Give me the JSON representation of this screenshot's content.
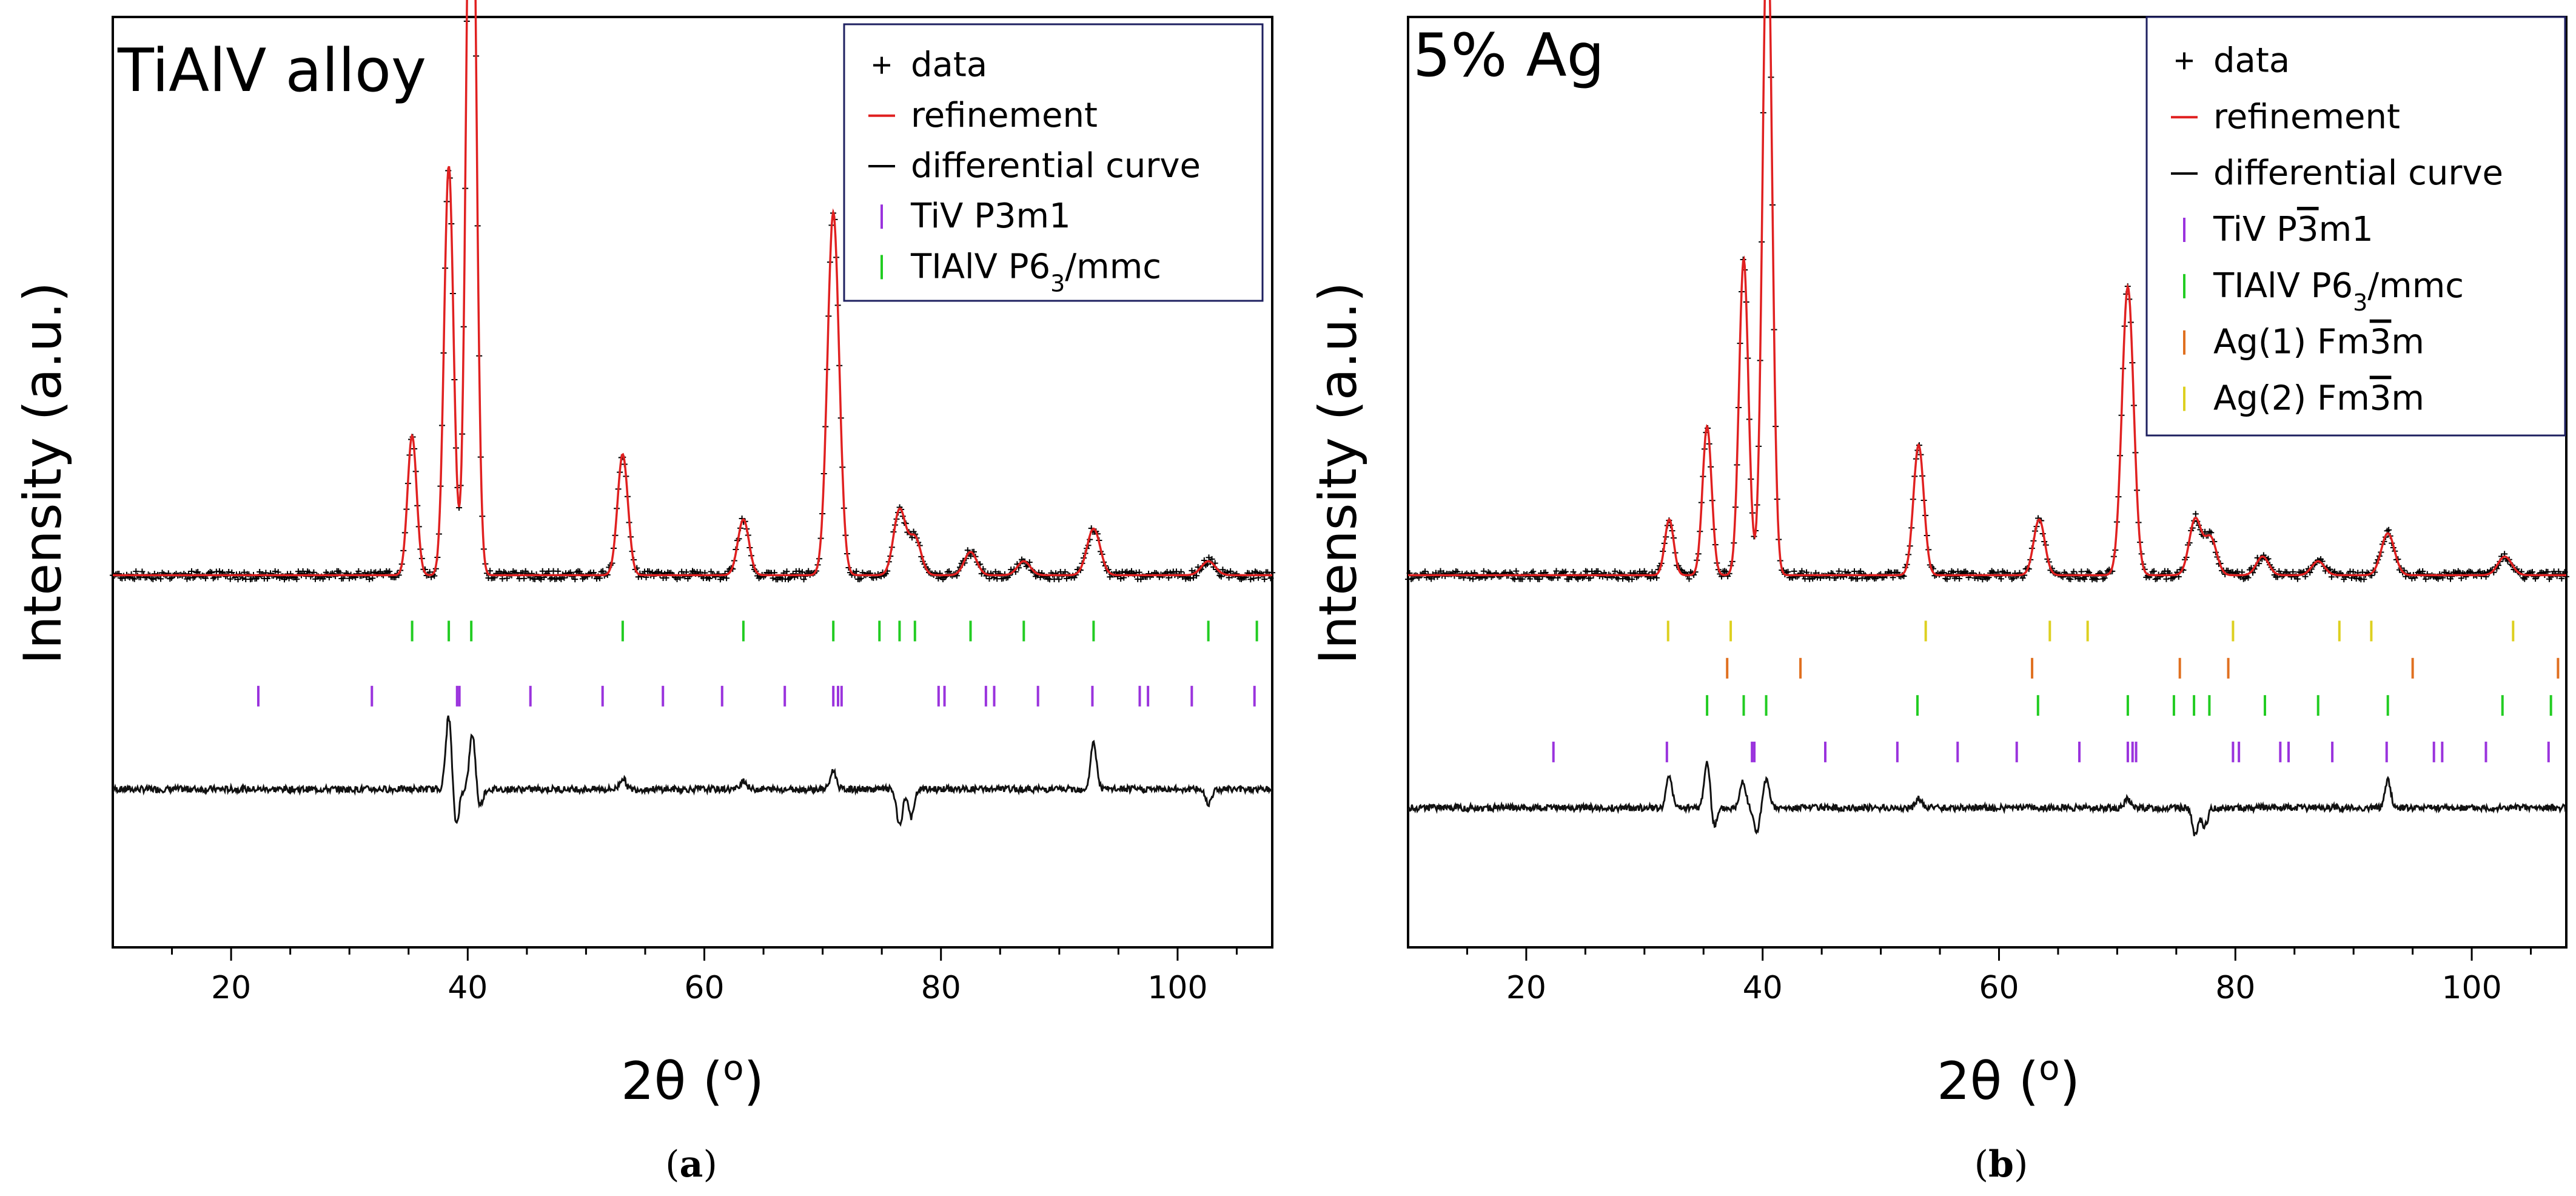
{
  "figure": {
    "ylabel": "Intensity (a.u.)",
    "xlabel_prefix": "2θ (",
    "xlabel_unit": "o",
    "xlabel_suffix": ")"
  },
  "chart_data": [
    {
      "type": "line",
      "panel_label": "(a)",
      "panel_letter": "a",
      "title": "TiAlV alloy",
      "xlabel": "2θ (o)",
      "ylabel": "Intensity (a.u.)",
      "xlim": [
        10,
        108
      ],
      "ylim": [
        0,
        100
      ],
      "xticks": [
        20,
        40,
        60,
        80,
        100
      ],
      "grid": false,
      "legend_position": "top-right",
      "baseline": 40,
      "diff_baseline": 17,
      "peaks": [
        {
          "x": 35.3,
          "h": 15
        },
        {
          "x": 38.4,
          "h": 44
        },
        {
          "x": 40.3,
          "h": 93
        },
        {
          "x": 53.1,
          "h": 13
        },
        {
          "x": 63.3,
          "h": 6
        },
        {
          "x": 70.9,
          "h": 39
        },
        {
          "x": 76.5,
          "h": 7
        },
        {
          "x": 77.8,
          "h": 4
        },
        {
          "x": 82.5,
          "h": 2.5
        },
        {
          "x": 87.0,
          "h": 1.5
        },
        {
          "x": 92.9,
          "h": 5
        },
        {
          "x": 102.6,
          "h": 1.5
        }
      ],
      "diff_features": [
        {
          "x": 38.4,
          "a": 8
        },
        {
          "x": 39.0,
          "a": -4
        },
        {
          "x": 40.4,
          "a": 6
        },
        {
          "x": 41.0,
          "a": -2
        },
        {
          "x": 53.1,
          "a": 1.2
        },
        {
          "x": 63.3,
          "a": 1
        },
        {
          "x": 70.9,
          "a": 2
        },
        {
          "x": 76.5,
          "a": -4
        },
        {
          "x": 77.5,
          "a": -3
        },
        {
          "x": 92.9,
          "a": 5
        },
        {
          "x": 102.6,
          "a": -1.5
        }
      ],
      "tick_rows": [
        {
          "name": "TiAlV P6₃/mmc",
          "color": "#22cc22",
          "y": 34,
          "positions": [
            35.3,
            38.4,
            40.3,
            53.1,
            63.3,
            70.9,
            74.8,
            76.5,
            77.8,
            82.5,
            87.0,
            92.9,
            102.6,
            106.7
          ]
        },
        {
          "name": "TiV P3m1",
          "color": "#9a33dd",
          "y": 27,
          "positions": [
            22.3,
            31.9,
            39.1,
            39.3,
            45.3,
            51.4,
            56.5,
            61.5,
            66.8,
            70.9,
            71.3,
            71.6,
            79.8,
            80.3,
            83.8,
            84.5,
            88.2,
            92.8,
            96.8,
            97.5,
            101.2,
            106.5
          ]
        }
      ],
      "legend": [
        {
          "marker": "+",
          "color": "#000000",
          "label": "data"
        },
        {
          "marker": "line",
          "color": "#e02020",
          "label": "refinement"
        },
        {
          "marker": "line",
          "color": "#000000",
          "label": "differential curve"
        },
        {
          "marker": "tick",
          "color": "#9a33dd",
          "label": "TiV P3m1",
          "pre": "TiV P3m1",
          "sub": "",
          "post": ""
        },
        {
          "marker": "tick",
          "color": "#22cc22",
          "label": "TIAlV P6₃/mmc",
          "pre": "TIAlV P6",
          "sub": "3",
          "post": "/mmc"
        }
      ]
    },
    {
      "type": "line",
      "panel_label": "(b)",
      "panel_letter": "b",
      "title": "5% Ag",
      "xlabel": "2θ (o)",
      "ylabel": "Intensity (a.u.)",
      "xlim": [
        10,
        108
      ],
      "ylim": [
        0,
        100
      ],
      "xticks": [
        20,
        40,
        60,
        80,
        100
      ],
      "grid": false,
      "legend_position": "top-right",
      "baseline": 40,
      "diff_baseline": 15,
      "peaks": [
        {
          "x": 32.1,
          "h": 6
        },
        {
          "x": 35.3,
          "h": 16
        },
        {
          "x": 38.4,
          "h": 34
        },
        {
          "x": 40.4,
          "h": 72
        },
        {
          "x": 53.2,
          "h": 14
        },
        {
          "x": 63.4,
          "h": 6
        },
        {
          "x": 70.9,
          "h": 31
        },
        {
          "x": 76.6,
          "h": 6
        },
        {
          "x": 77.9,
          "h": 4
        },
        {
          "x": 82.3,
          "h": 2
        },
        {
          "x": 87.0,
          "h": 1.5
        },
        {
          "x": 92.9,
          "h": 4.5
        },
        {
          "x": 102.8,
          "h": 2
        }
      ],
      "diff_features": [
        {
          "x": 32.1,
          "a": 3.5
        },
        {
          "x": 35.3,
          "a": 5
        },
        {
          "x": 35.9,
          "a": -2
        },
        {
          "x": 38.3,
          "a": 3
        },
        {
          "x": 39.5,
          "a": -2.5
        },
        {
          "x": 40.3,
          "a": 3
        },
        {
          "x": 53.2,
          "a": 1
        },
        {
          "x": 70.9,
          "a": 1
        },
        {
          "x": 76.6,
          "a": -3
        },
        {
          "x": 77.4,
          "a": -2
        },
        {
          "x": 92.9,
          "a": 3
        }
      ],
      "tick_rows": [
        {
          "name": "Ag(2) Fm3̄m",
          "color": "#ddd020",
          "y": 34,
          "positions": [
            32.0,
            37.3,
            53.8,
            64.3,
            67.5,
            79.8,
            88.8,
            91.5,
            103.5
          ]
        },
        {
          "name": "Ag(1) Fm3̄m",
          "color": "#e07020",
          "y": 30,
          "positions": [
            37.0,
            43.2,
            62.8,
            75.3,
            79.4,
            95.0,
            107.3
          ]
        },
        {
          "name": "TIAlV P6₃/mmc",
          "color": "#22cc22",
          "y": 26,
          "positions": [
            35.3,
            38.4,
            40.3,
            53.1,
            63.3,
            70.9,
            74.8,
            76.5,
            77.8,
            82.5,
            87.0,
            92.9,
            102.6,
            106.7
          ]
        },
        {
          "name": "TiV P3̄m1",
          "color": "#9a33dd",
          "y": 21,
          "positions": [
            22.3,
            31.9,
            39.1,
            39.3,
            45.3,
            51.4,
            56.5,
            61.5,
            66.8,
            70.9,
            71.3,
            71.6,
            79.8,
            80.3,
            83.8,
            84.5,
            88.2,
            92.8,
            96.8,
            97.5,
            101.2,
            106.5
          ]
        }
      ],
      "legend": [
        {
          "marker": "+",
          "color": "#000000",
          "label": "data"
        },
        {
          "marker": "line",
          "color": "#e02020",
          "label": "refinement"
        },
        {
          "marker": "line",
          "color": "#000000",
          "label": "differential curve"
        },
        {
          "marker": "tick",
          "color": "#9a33dd",
          "label": "TiV P3̄m1",
          "pre": "TiV P",
          "bar": "3",
          "post": "m1"
        },
        {
          "marker": "tick",
          "color": "#22cc22",
          "label": "TIAlV P6₃/mmc",
          "pre": "TIAlV P6",
          "sub": "3",
          "post": "/mmc"
        },
        {
          "marker": "tick",
          "color": "#e07020",
          "label": "Ag(1) Fm3̄m",
          "pre": "Ag(1) Fm",
          "bar": "3",
          "post": "m"
        },
        {
          "marker": "tick",
          "color": "#ddd020",
          "label": "Ag(2) Fm3̄m",
          "pre": "Ag(2) Fm",
          "bar": "3",
          "post": "m"
        }
      ]
    }
  ]
}
